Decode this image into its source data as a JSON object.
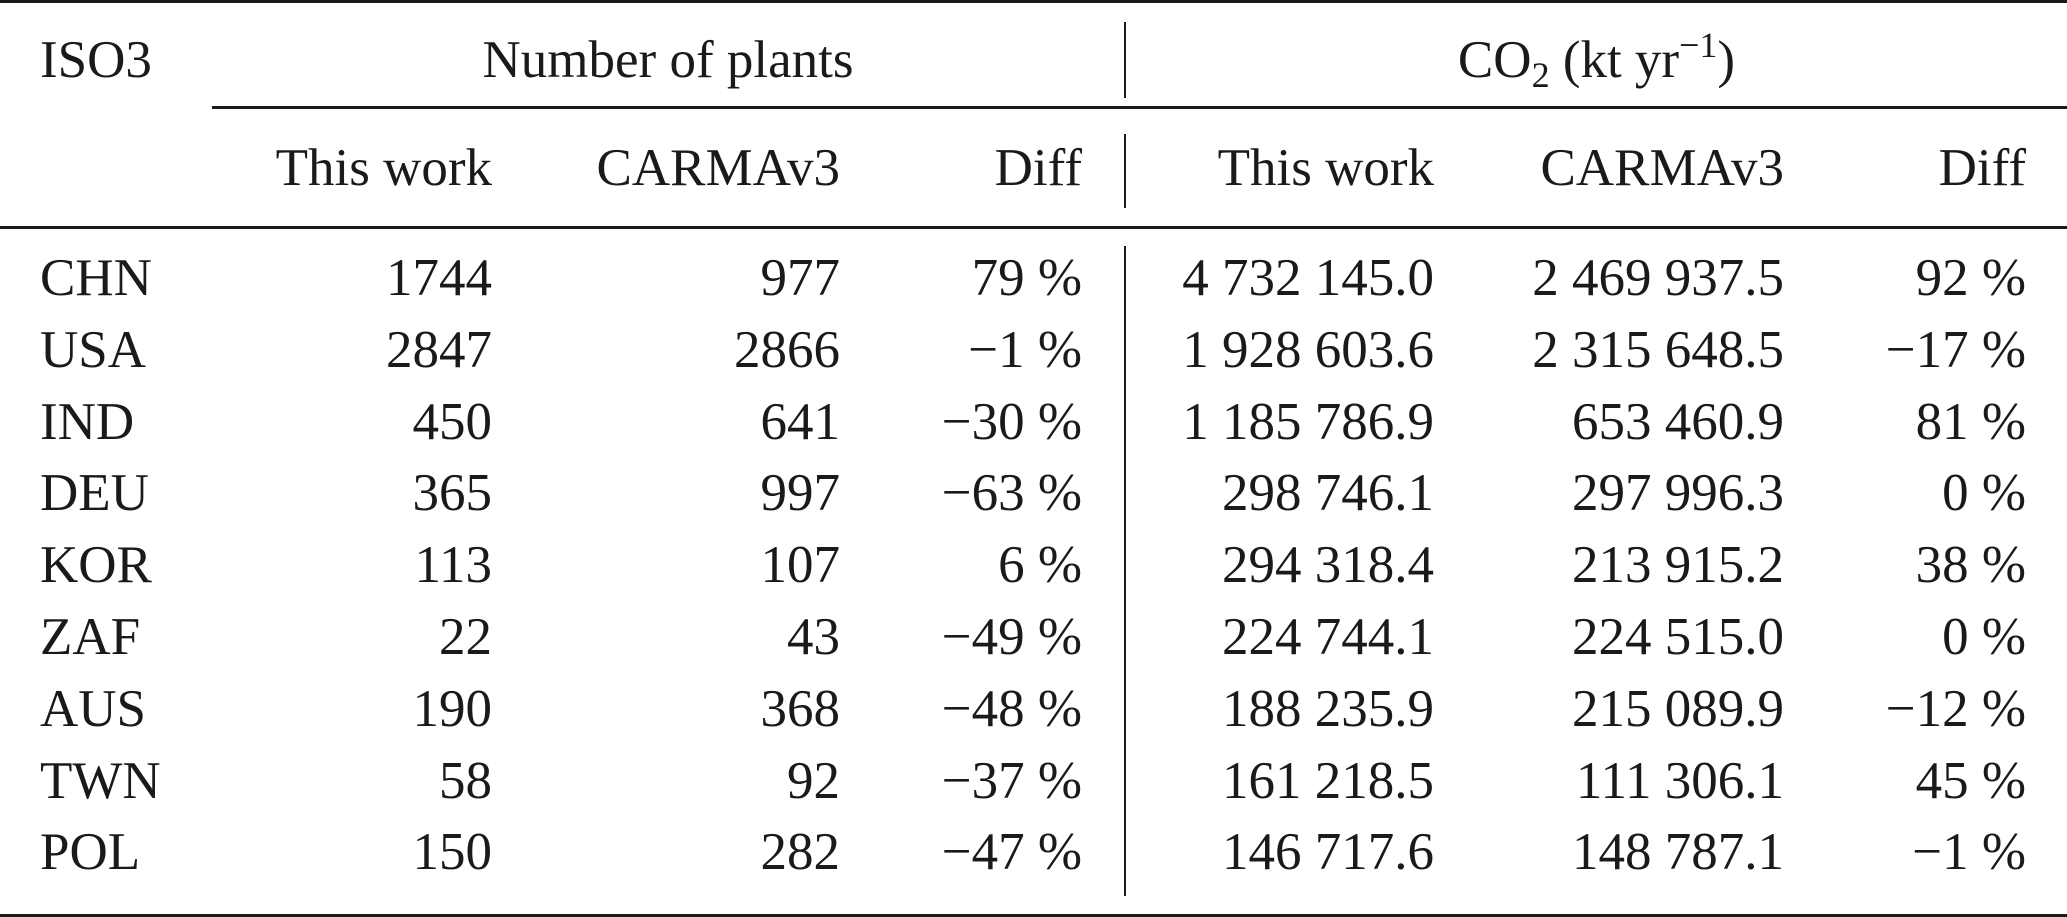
{
  "header": {
    "iso_label": "ISO3",
    "group_plants": "Number of plants",
    "group_co2": {
      "prefix": "CO",
      "subscript": "2",
      "unit_open": " (kt yr",
      "superscript": "−1",
      "unit_close": ")"
    },
    "sub_this_work": "This work",
    "sub_carma": "CARMAv3",
    "sub_diff": "Diff"
  },
  "rows": [
    {
      "iso": "CHN",
      "plants_this": "1744",
      "plants_carma": "977",
      "plants_diff": "79 %",
      "co2_this": "4 732 145.0",
      "co2_carma": "2 469 937.5",
      "co2_diff": "92 %"
    },
    {
      "iso": "USA",
      "plants_this": "2847",
      "plants_carma": "2866",
      "plants_diff": "−1 %",
      "co2_this": "1 928 603.6",
      "co2_carma": "2 315 648.5",
      "co2_diff": "−17 %"
    },
    {
      "iso": "IND",
      "plants_this": "450",
      "plants_carma": "641",
      "plants_diff": "−30 %",
      "co2_this": "1 185 786.9",
      "co2_carma": "653 460.9",
      "co2_diff": "81 %"
    },
    {
      "iso": "DEU",
      "plants_this": "365",
      "plants_carma": "997",
      "plants_diff": "−63 %",
      "co2_this": "298 746.1",
      "co2_carma": "297 996.3",
      "co2_diff": "0 %"
    },
    {
      "iso": "KOR",
      "plants_this": "113",
      "plants_carma": "107",
      "plants_diff": "6 %",
      "co2_this": "294 318.4",
      "co2_carma": "213 915.2",
      "co2_diff": "38 %"
    },
    {
      "iso": "ZAF",
      "plants_this": "22",
      "plants_carma": "43",
      "plants_diff": "−49 %",
      "co2_this": "224 744.1",
      "co2_carma": "224 515.0",
      "co2_diff": "0 %"
    },
    {
      "iso": "AUS",
      "plants_this": "190",
      "plants_carma": "368",
      "plants_diff": "−48 %",
      "co2_this": "188 235.9",
      "co2_carma": "215 089.9",
      "co2_diff": "−12 %"
    },
    {
      "iso": "TWN",
      "plants_this": "58",
      "plants_carma": "92",
      "plants_diff": "−37 %",
      "co2_this": "161 218.5",
      "co2_carma": "111 306.1",
      "co2_diff": "45 %"
    },
    {
      "iso": "POL",
      "plants_this": "150",
      "plants_carma": "282",
      "plants_diff": "−47 %",
      "co2_this": "146 717.6",
      "co2_carma": "148 787.1",
      "co2_diff": "−1 %"
    }
  ]
}
